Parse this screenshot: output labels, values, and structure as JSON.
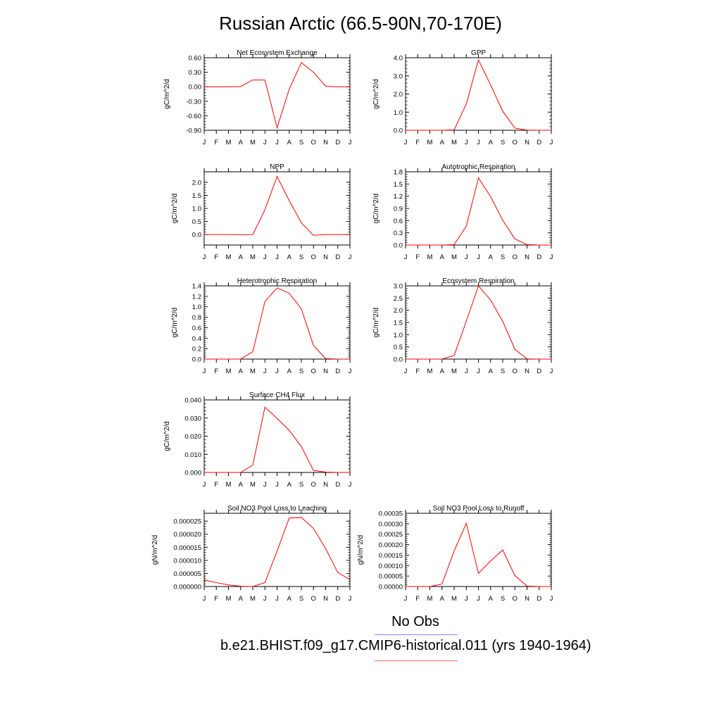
{
  "title": "Russian Arctic (66.5-90N,70-170E)",
  "legend": {
    "obs_label": "No Obs",
    "obs_color": "#8888ff",
    "model_label": "b.e21.BHIST.f09_g17.CMIP6-historical.011 (yrs 1940-1964)",
    "model_color": "#ff0000"
  },
  "chart_data": [
    {
      "type": "line",
      "title": "Net Ecosystem Exchange",
      "ylabel": "gC/m^2/d",
      "xlabel": "",
      "categories": [
        "J",
        "F",
        "M",
        "A",
        "M",
        "J",
        "J",
        "A",
        "S",
        "O",
        "N",
        "D",
        "J"
      ],
      "ylim": [
        -0.9,
        0.6
      ],
      "yticks": [
        -0.9,
        -0.6,
        -0.3,
        0.0,
        0.3,
        0.6
      ],
      "ytick_labels": [
        "-0.90",
        "-0.60",
        "-0.30",
        "0.00",
        "0.30",
        "0.60"
      ],
      "series": [
        {
          "values": [
            0.0,
            0.0,
            0.0,
            0.005,
            0.14,
            0.14,
            -0.85,
            -0.05,
            0.5,
            0.3,
            0.01,
            0.0,
            0.0
          ]
        }
      ]
    },
    {
      "type": "line",
      "title": "GPP",
      "ylabel": "gC/m^2/d",
      "xlabel": "",
      "categories": [
        "J",
        "F",
        "M",
        "A",
        "M",
        "J",
        "J",
        "A",
        "S",
        "O",
        "N",
        "D",
        "J"
      ],
      "ylim": [
        0.0,
        4.0
      ],
      "yticks": [
        0.0,
        1.0,
        2.0,
        3.0,
        4.0
      ],
      "ytick_labels": [
        "0.0",
        "1.0",
        "2.0",
        "3.0",
        "4.0"
      ],
      "series": [
        {
          "values": [
            0.0,
            0.0,
            0.0,
            0.0,
            0.02,
            1.45,
            3.88,
            2.5,
            1.05,
            0.12,
            0.01,
            0.0,
            0.0
          ]
        }
      ]
    },
    {
      "type": "line",
      "title": "NPP",
      "ylabel": "gC/m^2/d",
      "xlabel": "",
      "categories": [
        "J",
        "F",
        "M",
        "A",
        "M",
        "J",
        "J",
        "A",
        "S",
        "O",
        "N",
        "D",
        "J"
      ],
      "ylim": [
        -0.4,
        2.4
      ],
      "yticks": [
        0.0,
        0.5,
        1.0,
        1.5,
        2.0
      ],
      "ytick_labels": [
        "0.0",
        "0.5",
        "1.0",
        "1.5",
        "2.0"
      ],
      "series": [
        {
          "values": [
            0.0,
            0.0,
            0.0,
            -0.005,
            0.0,
            0.95,
            2.22,
            1.3,
            0.45,
            -0.03,
            0.0,
            0.0,
            0.0
          ]
        }
      ]
    },
    {
      "type": "line",
      "title": "Autotrophic Respiration",
      "ylabel": "gC/m^2/d",
      "xlabel": "",
      "categories": [
        "J",
        "F",
        "M",
        "A",
        "M",
        "J",
        "J",
        "A",
        "S",
        "O",
        "N",
        "D",
        "J"
      ],
      "ylim": [
        0.0,
        1.8
      ],
      "yticks": [
        0.0,
        0.3,
        0.6,
        0.9,
        1.2,
        1.5,
        1.8
      ],
      "ytick_labels": [
        "0.0",
        "0.3",
        "0.6",
        "0.9",
        "1.2",
        "1.5",
        "1.8"
      ],
      "series": [
        {
          "values": [
            0.0,
            0.0,
            0.0,
            0.0,
            0.01,
            0.46,
            1.65,
            1.19,
            0.61,
            0.15,
            0.01,
            0.0,
            0.0
          ]
        }
      ]
    },
    {
      "type": "line",
      "title": "Heterotrophic Respiration",
      "ylabel": "gC/m^2/d",
      "xlabel": "",
      "categories": [
        "J",
        "F",
        "M",
        "A",
        "M",
        "J",
        "J",
        "A",
        "S",
        "O",
        "N",
        "D",
        "J"
      ],
      "ylim": [
        0.0,
        1.4
      ],
      "yticks": [
        0.0,
        0.2,
        0.4,
        0.6,
        0.8,
        1.0,
        1.2,
        1.4
      ],
      "ytick_labels": [
        "0.0",
        "0.2",
        "0.4",
        "0.6",
        "0.8",
        "1.0",
        "1.2",
        "1.4"
      ],
      "series": [
        {
          "values": [
            0.0,
            0.0,
            0.0,
            0.0,
            0.14,
            1.1,
            1.36,
            1.26,
            0.96,
            0.26,
            0.01,
            0.0,
            0.0
          ]
        }
      ]
    },
    {
      "type": "line",
      "title": "Ecosystem Respiration",
      "ylabel": "gC/m^2/d",
      "xlabel": "",
      "categories": [
        "J",
        "F",
        "M",
        "A",
        "M",
        "J",
        "J",
        "A",
        "S",
        "O",
        "N",
        "D",
        "J"
      ],
      "ylim": [
        0.0,
        3.0
      ],
      "yticks": [
        0.0,
        0.5,
        1.0,
        1.5,
        2.0,
        2.5,
        3.0
      ],
      "ytick_labels": [
        "0.0",
        "0.5",
        "1.0",
        "1.5",
        "2.0",
        "2.5",
        "3.0"
      ],
      "series": [
        {
          "values": [
            0.0,
            0.0,
            0.0,
            0.0,
            0.15,
            1.55,
            3.0,
            2.42,
            1.55,
            0.4,
            0.01,
            0.0,
            0.0
          ]
        }
      ]
    },
    {
      "type": "line",
      "title": "Surface CH4 Flux",
      "ylabel": "gC/m^2/d",
      "xlabel": "",
      "categories": [
        "J",
        "F",
        "M",
        "A",
        "M",
        "J",
        "J",
        "A",
        "S",
        "O",
        "N",
        "D",
        "J"
      ],
      "ylim": [
        0.0,
        0.04
      ],
      "yticks": [
        0.0,
        0.01,
        0.02,
        0.03,
        0.04
      ],
      "ytick_labels": [
        "0.000",
        "0.010",
        "0.020",
        "0.030",
        "0.040"
      ],
      "series": [
        {
          "values": [
            0.0,
            0.0,
            0.0,
            0.0,
            0.004,
            0.036,
            0.0298,
            0.0232,
            0.0143,
            0.0011,
            0.0002,
            0.0,
            0.0
          ]
        }
      ]
    },
    {
      "type": "line",
      "title": "Soil NO3 Pool Loss to Leaching",
      "ylabel": "gN/m^2/d",
      "xlabel": "",
      "categories": [
        "J",
        "F",
        "M",
        "A",
        "M",
        "J",
        "J",
        "A",
        "S",
        "O",
        "N",
        "D",
        "J"
      ],
      "ylim": [
        0.0,
        2.8e-05
      ],
      "yticks": [
        0.0,
        5e-06,
        1e-05,
        1.5e-05,
        2e-05,
        2.5e-05
      ],
      "ytick_labels": [
        "0.000000",
        "0.000005",
        "0.000010",
        "0.000015",
        "0.000020",
        "0.000025"
      ],
      "series": [
        {
          "values": [
            2.5e-06,
            1.5e-06,
            6e-07,
            1e-07,
            0.0,
            1.5e-06,
            1.35e-05,
            2.62e-05,
            2.64e-05,
            2.22e-05,
            1.45e-05,
            5.4e-06,
            2.6e-06
          ]
        }
      ]
    },
    {
      "type": "line",
      "title": "Soil NO3 Pool Loss to Runoff",
      "ylabel": "gN/m^2/d",
      "xlabel": "",
      "categories": [
        "J",
        "F",
        "M",
        "A",
        "M",
        "J",
        "J",
        "A",
        "S",
        "O",
        "N",
        "D",
        "J"
      ],
      "ylim": [
        0.0,
        0.00035
      ],
      "yticks": [
        0.0,
        5e-05,
        0.0001,
        0.00015,
        0.0002,
        0.00025,
        0.0003,
        0.00035
      ],
      "ytick_labels": [
        "0.00000",
        "0.00005",
        "0.00010",
        "0.00015",
        "0.00020",
        "0.00025",
        "0.00030",
        "0.00035"
      ],
      "series": [
        {
          "values": [
            0.0,
            0.0,
            0.0,
            1.2e-05,
            0.00017,
            0.000302,
            6.3e-05,
            0.000122,
            0.000175,
            5.2e-05,
            2e-06,
            0.0,
            0.0
          ]
        }
      ]
    }
  ]
}
